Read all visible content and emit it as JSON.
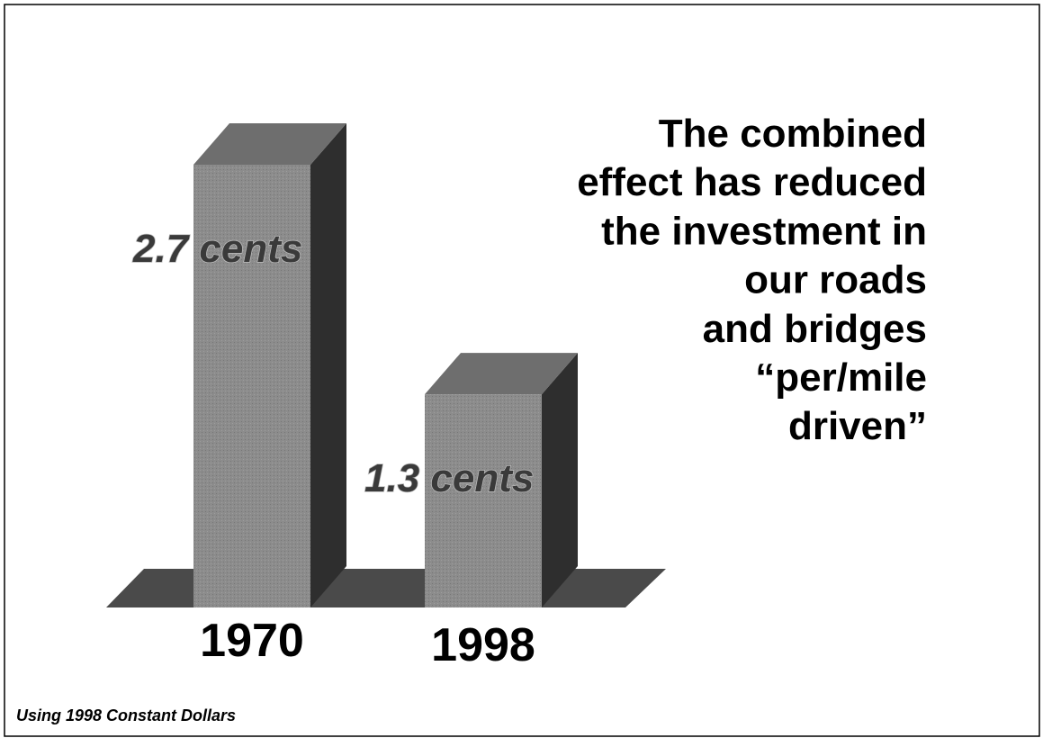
{
  "chart_data": {
    "type": "bar3d",
    "title": [
      "The combined",
      "effect has reduced",
      "the investment in",
      "our roads",
      "and bridges",
      "“per/mile",
      "driven”"
    ],
    "categories": [
      "1970",
      "1998"
    ],
    "values": [
      2.7,
      1.3
    ],
    "value_labels": [
      "2.7 cents",
      "1.3 cents"
    ],
    "color": "#8c8c8c",
    "note": "Using 1998 Constant Dollars"
  }
}
